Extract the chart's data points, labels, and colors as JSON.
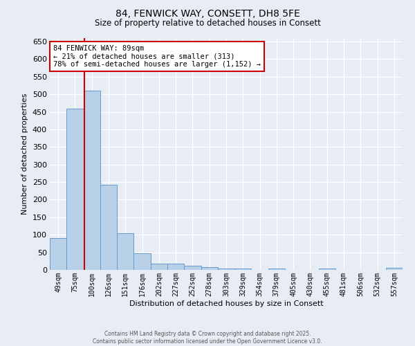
{
  "title_line1": "84, FENWICK WAY, CONSETT, DH8 5FE",
  "title_line2": "Size of property relative to detached houses in Consett",
  "xlabel": "Distribution of detached houses by size in Consett",
  "ylabel": "Number of detached properties",
  "categories": [
    "49sqm",
    "75sqm",
    "100sqm",
    "126sqm",
    "151sqm",
    "176sqm",
    "202sqm",
    "227sqm",
    "252sqm",
    "278sqm",
    "303sqm",
    "329sqm",
    "354sqm",
    "379sqm",
    "405sqm",
    "430sqm",
    "455sqm",
    "481sqm",
    "506sqm",
    "532sqm",
    "557sqm"
  ],
  "values": [
    90,
    460,
    510,
    243,
    105,
    47,
    18,
    18,
    12,
    8,
    4,
    4,
    0,
    4,
    0,
    0,
    4,
    0,
    0,
    0,
    5
  ],
  "bar_color": "#b8d0e8",
  "bar_edge_color": "#6699cc",
  "vline_color": "#cc0000",
  "annotation_text": "84 FENWICK WAY: 89sqm\n← 21% of detached houses are smaller (313)\n78% of semi-detached houses are larger (1,152) →",
  "annotation_box_facecolor": "#ffffff",
  "annotation_box_edgecolor": "#cc0000",
  "ylim": [
    0,
    660
  ],
  "yticks": [
    0,
    50,
    100,
    150,
    200,
    250,
    300,
    350,
    400,
    450,
    500,
    550,
    600,
    650
  ],
  "background_color": "#e8edf5",
  "grid_color": "#ffffff",
  "footer_line1": "Contains HM Land Registry data © Crown copyright and database right 2025.",
  "footer_line2": "Contains public sector information licensed under the Open Government Licence v3.0."
}
